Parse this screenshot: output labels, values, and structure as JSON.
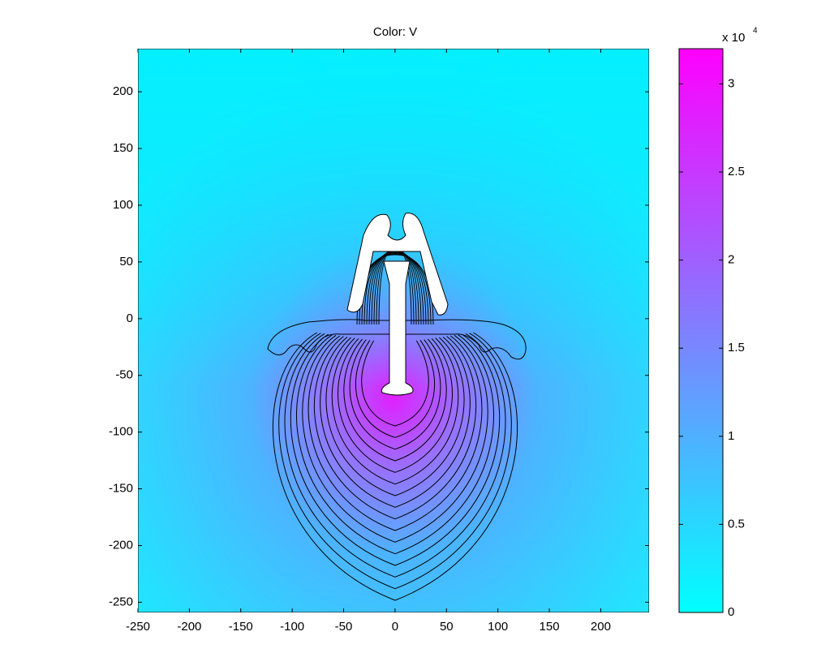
{
  "chart_data": {
    "type": "field",
    "title": "Color: V",
    "xlim": [
      -250,
      247
    ],
    "ylim": [
      -259,
      238
    ],
    "xticks": [
      -250,
      -200,
      -150,
      -100,
      -50,
      0,
      50,
      100,
      150,
      200
    ],
    "yticks": [
      -250,
      -200,
      -150,
      -100,
      -50,
      0,
      50,
      100,
      150,
      200
    ],
    "colorbar": {
      "clim": [
        0,
        32000
      ],
      "colormap": [
        "#00ffff",
        "#ff00ff"
      ],
      "ticks": [
        0,
        {
          "value": 5000,
          "label": "0.5"
        },
        {
          "value": 10000,
          "label": "1"
        },
        {
          "value": 15000,
          "label": "1.5"
        },
        {
          "value": 20000,
          "label": "2"
        },
        {
          "value": 25000,
          "label": "2.5"
        },
        {
          "value": 30000,
          "label": "3"
        }
      ],
      "multiplier": "x 10",
      "exponent": "4"
    }
  }
}
